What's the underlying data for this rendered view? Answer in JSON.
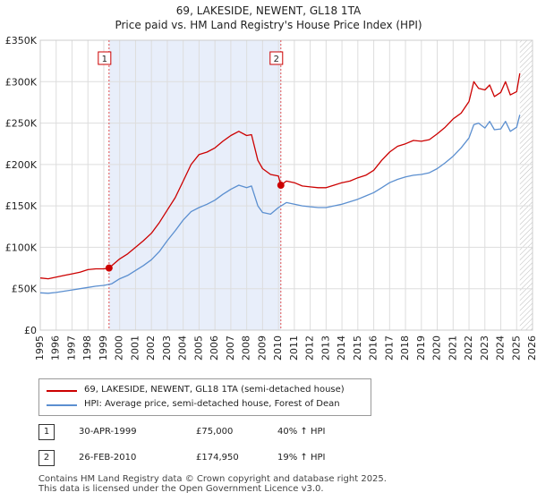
{
  "title_line1": "69, LAKESIDE, NEWENT, GL18 1TA",
  "title_line2": "Price paid vs. HM Land Registry's House Price Index (HPI)",
  "chart_data": {
    "type": "line",
    "xlim": [
      1995,
      2026
    ],
    "ylim": [
      0,
      350000
    ],
    "y_ticks": [
      0,
      50000,
      100000,
      150000,
      200000,
      250000,
      300000,
      350000
    ],
    "y_tick_labels": [
      "£0",
      "£50K",
      "£100K",
      "£150K",
      "£200K",
      "£250K",
      "£300K",
      "£350K"
    ],
    "x_ticks": [
      1995,
      1996,
      1997,
      1998,
      1999,
      2000,
      2001,
      2002,
      2003,
      2004,
      2005,
      2006,
      2007,
      2008,
      2009,
      2010,
      2011,
      2012,
      2013,
      2014,
      2015,
      2016,
      2017,
      2018,
      2019,
      2020,
      2021,
      2022,
      2023,
      2024,
      2025,
      2026
    ],
    "x_tick_labels": [
      "1995",
      "1996",
      "1997",
      "1998",
      "1999",
      "2000",
      "2001",
      "2002",
      "2003",
      "2004",
      "2005",
      "2006",
      "2007",
      "2008",
      "2009",
      "2010",
      "2011",
      "2012",
      "2013",
      "2014",
      "2015",
      "2016",
      "2017",
      "2018",
      "2019",
      "2020",
      "2021",
      "2022",
      "2023",
      "2024",
      "2025",
      "2026"
    ],
    "shaded_region": [
      1999.33,
      2010.15
    ],
    "forecast_start": 2025.2,
    "series": [
      {
        "name": "69, LAKESIDE, NEWENT, GL18 1TA (semi-detached house)",
        "color": "#cc0000",
        "x": [
          1995.0,
          1995.5,
          1996.0,
          1996.5,
          1997.0,
          1997.5,
          1998.0,
          1998.5,
          1999.0,
          1999.33,
          2000.0,
          2000.5,
          2001.0,
          2001.5,
          2002.0,
          2002.5,
          2003.0,
          2003.5,
          2004.0,
          2004.5,
          2005.0,
          2005.5,
          2006.0,
          2006.5,
          2007.0,
          2007.5,
          2008.0,
          2008.3,
          2008.7,
          2009.0,
          2009.5,
          2010.0,
          2010.15,
          2010.5,
          2011.0,
          2011.5,
          2012.0,
          2012.5,
          2013.0,
          2013.5,
          2014.0,
          2014.5,
          2015.0,
          2015.5,
          2016.0,
          2016.5,
          2017.0,
          2017.5,
          2018.0,
          2018.5,
          2019.0,
          2019.5,
          2020.0,
          2020.5,
          2021.0,
          2021.5,
          2022.0,
          2022.3,
          2022.6,
          2023.0,
          2023.3,
          2023.6,
          2024.0,
          2024.3,
          2024.6,
          2025.0,
          2025.2
        ],
        "y": [
          63000,
          62000,
          64000,
          66000,
          68000,
          70000,
          73000,
          74000,
          74000,
          75000,
          86000,
          92000,
          100000,
          108000,
          117000,
          130000,
          145000,
          160000,
          180000,
          200000,
          212000,
          215000,
          220000,
          228000,
          235000,
          240000,
          235000,
          236000,
          205000,
          195000,
          188000,
          186000,
          174950,
          180000,
          178000,
          174000,
          173000,
          172000,
          172000,
          175000,
          178000,
          180000,
          184000,
          187000,
          193000,
          205000,
          215000,
          222000,
          225000,
          229000,
          228000,
          230000,
          237000,
          245000,
          255000,
          262000,
          276000,
          300000,
          292000,
          290000,
          296000,
          282000,
          287000,
          300000,
          284000,
          288000,
          310000
        ]
      },
      {
        "name": "HPI: Average price, semi-detached house, Forest of Dean",
        "color": "#5b8fd0",
        "x": [
          1995.0,
          1995.5,
          1996.0,
          1996.5,
          1997.0,
          1997.5,
          1998.0,
          1998.5,
          1999.0,
          1999.5,
          2000.0,
          2000.5,
          2001.0,
          2001.5,
          2002.0,
          2002.5,
          2003.0,
          2003.5,
          2004.0,
          2004.5,
          2005.0,
          2005.5,
          2006.0,
          2006.5,
          2007.0,
          2007.5,
          2008.0,
          2008.3,
          2008.7,
          2009.0,
          2009.5,
          2010.0,
          2010.5,
          2011.0,
          2011.5,
          2012.0,
          2012.5,
          2013.0,
          2013.5,
          2014.0,
          2014.5,
          2015.0,
          2015.5,
          2016.0,
          2016.5,
          2017.0,
          2017.5,
          2018.0,
          2018.5,
          2019.0,
          2019.5,
          2020.0,
          2020.5,
          2021.0,
          2021.5,
          2022.0,
          2022.3,
          2022.6,
          2023.0,
          2023.3,
          2023.6,
          2024.0,
          2024.3,
          2024.6,
          2025.0,
          2025.2
        ],
        "y": [
          45000,
          44500,
          45500,
          47000,
          48500,
          50000,
          51500,
          53000,
          54000,
          56000,
          62000,
          66000,
          72000,
          78000,
          85000,
          95000,
          108000,
          120000,
          133000,
          143000,
          148000,
          152000,
          157000,
          164000,
          170000,
          175000,
          172000,
          174000,
          150000,
          142000,
          140000,
          148000,
          154000,
          152000,
          150000,
          149000,
          148000,
          148000,
          150000,
          152000,
          155000,
          158000,
          162000,
          166000,
          172000,
          178000,
          182000,
          185000,
          187000,
          188000,
          190000,
          195000,
          202000,
          210000,
          220000,
          232000,
          248000,
          250000,
          244000,
          252000,
          242000,
          243000,
          252000,
          240000,
          245000,
          260000
        ]
      }
    ],
    "sales": [
      {
        "label": "1",
        "x": 1999.33,
        "y": 75000
      },
      {
        "label": "2",
        "x": 2010.15,
        "y": 174950
      }
    ]
  },
  "legend": {
    "price_label": "69, LAKESIDE, NEWENT, GL18 1TA (semi-detached house)",
    "hpi_label": "HPI: Average price, semi-detached house, Forest of Dean",
    "price_color": "#cc0000",
    "hpi_color": "#5b8fd0"
  },
  "sales_table": [
    {
      "label": "1",
      "date": "30-APR-1999",
      "price": "£75,000",
      "hpi_change": "40% ↑ HPI"
    },
    {
      "label": "2",
      "date": "26-FEB-2010",
      "price": "£174,950",
      "hpi_change": "19% ↑ HPI"
    }
  ],
  "footer": {
    "line1": "Contains HM Land Registry data © Crown copyright and database right 2025.",
    "line2": "This data is licensed under the Open Government Licence v3.0."
  }
}
